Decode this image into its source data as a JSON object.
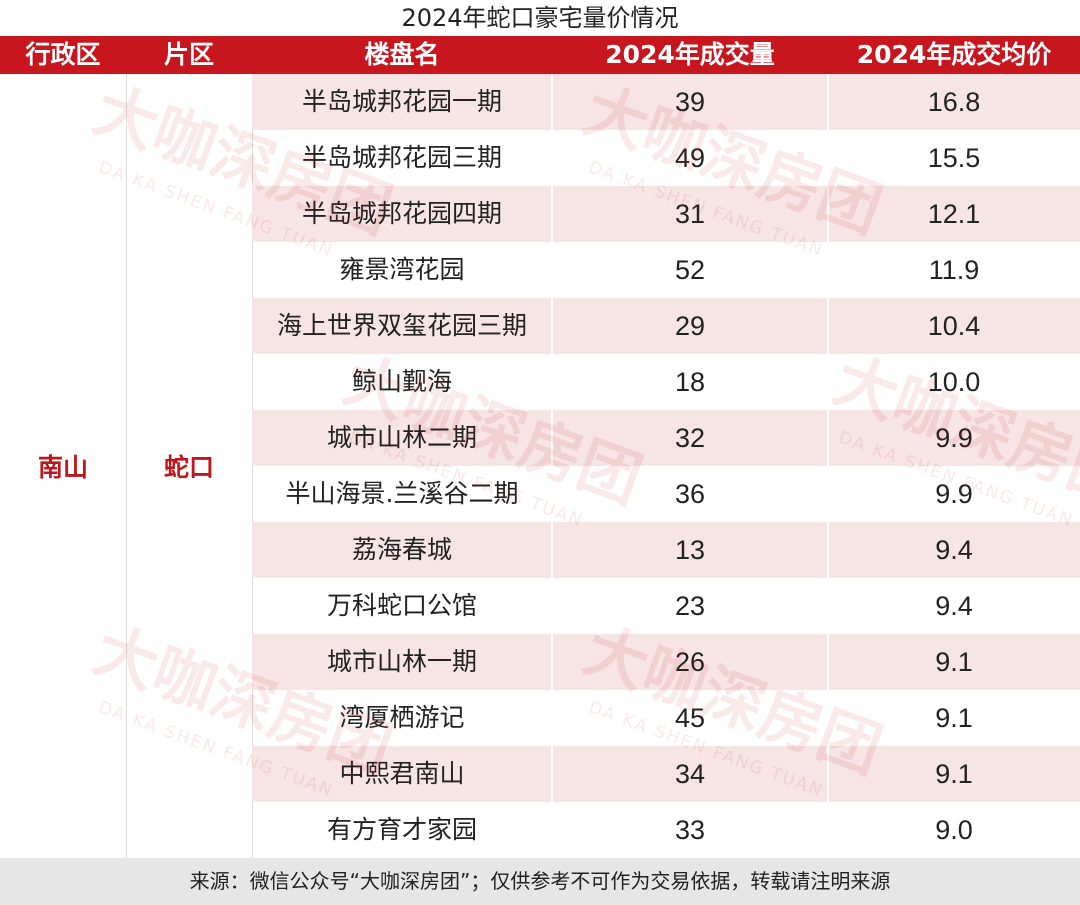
{
  "chart_data": {
    "type": "table",
    "title": "2024年蛇口豪宅量价情况",
    "columns": [
      "行政区",
      "片区",
      "楼盘名",
      "2024年成交量",
      "2024年成交均价"
    ],
    "district": "南山",
    "area": "蛇口",
    "rows": [
      {
        "name": "半岛城邦花园一期",
        "volume": "39",
        "price": "16.8"
      },
      {
        "name": "半岛城邦花园三期",
        "volume": "49",
        "price": "15.5"
      },
      {
        "name": "半岛城邦花园四期",
        "volume": "31",
        "price": "12.1"
      },
      {
        "name": "雍景湾花园",
        "volume": "52",
        "price": "11.9"
      },
      {
        "name": "海上世界双玺花园三期",
        "volume": "29",
        "price": "10.4"
      },
      {
        "name": "鲸山觐海",
        "volume": "18",
        "price": "10.0"
      },
      {
        "name": "城市山林二期",
        "volume": "32",
        "price": "9.9"
      },
      {
        "name": "半山海景.兰溪谷二期",
        "volume": "36",
        "price": "9.9"
      },
      {
        "name": "荔海春城",
        "volume": "13",
        "price": "9.4"
      },
      {
        "name": "万科蛇口公馆",
        "volume": "23",
        "price": "9.4"
      },
      {
        "name": "城市山林一期",
        "volume": "26",
        "price": "9.1"
      },
      {
        "name": "湾厦栖游记",
        "volume": "45",
        "price": "9.1"
      },
      {
        "name": "中熙君南山",
        "volume": "34",
        "price": "9.1"
      },
      {
        "name": "有方育才家园",
        "volume": "33",
        "price": "9.0"
      }
    ],
    "source": "来源：微信公众号“大咖深房团”；仅供参考不可作为交易依据，转载请注明来源"
  },
  "watermark": {
    "cn": "大咖深房团",
    "en": "DA KA SHEN FANG TUAN"
  },
  "colors": {
    "header": "#c8161e",
    "row_shade": "#f7e4e4",
    "merged_text": "#c0171f",
    "footer": "#e6e6e6"
  }
}
